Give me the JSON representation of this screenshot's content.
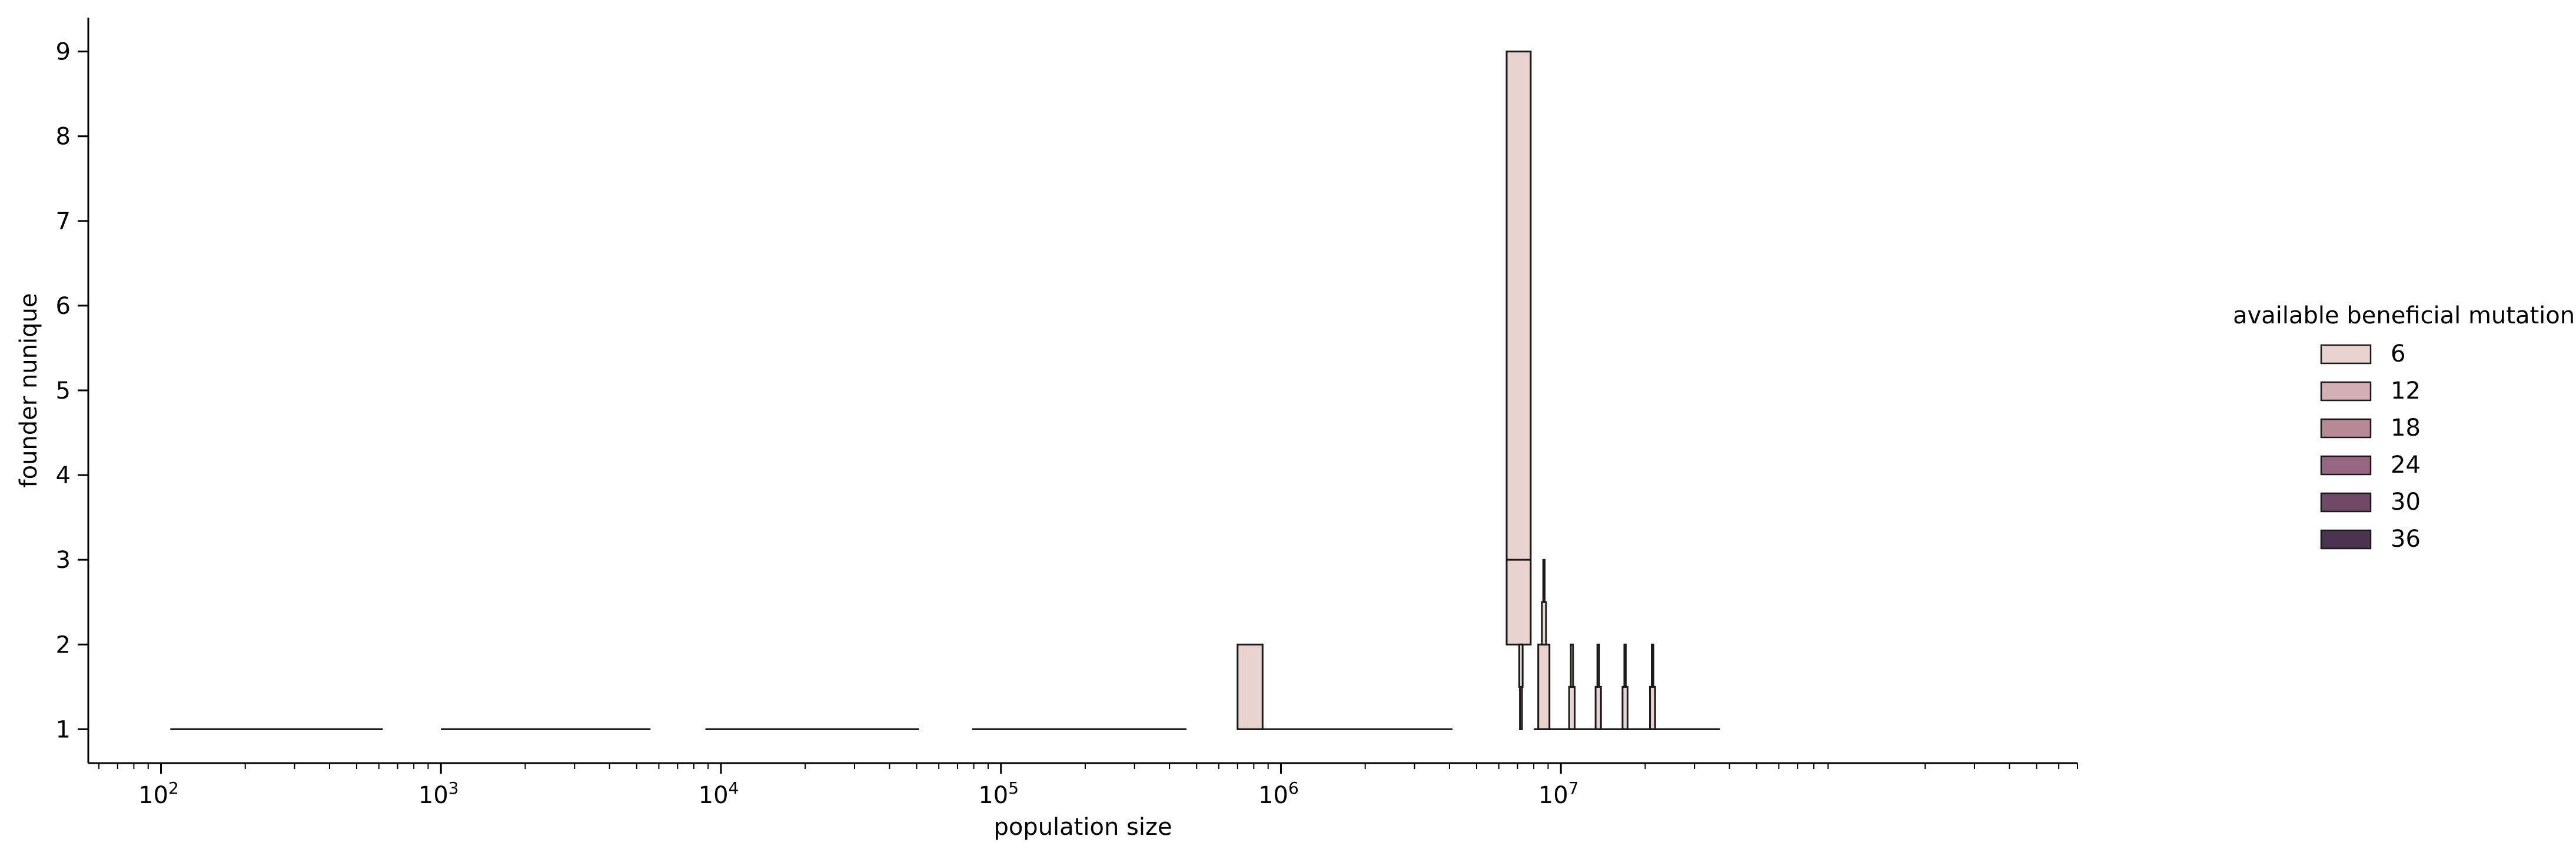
{
  "chart_data": {
    "type": "boxen",
    "xlabel": "population size",
    "ylabel": "founder nunique",
    "xscale": "log",
    "xlim": [
      55,
      700000000
    ],
    "ylim": [
      0.6,
      9.4
    ],
    "x_ticks": [
      {
        "value": 100,
        "label": "10",
        "exp": "2"
      },
      {
        "value": 1000,
        "label": "10",
        "exp": "3"
      },
      {
        "value": 10000,
        "label": "10",
        "exp": "4"
      },
      {
        "value": 100000,
        "label": "10",
        "exp": "5"
      },
      {
        "value": 1000000,
        "label": "10",
        "exp": "6"
      },
      {
        "value": 10000000,
        "label": "10",
        "exp": "7"
      }
    ],
    "y_ticks": [
      1,
      2,
      3,
      4,
      5,
      6,
      7,
      8,
      9
    ],
    "legend": {
      "title": "available beneficial mutations",
      "placement": "right",
      "entries": [
        {
          "label": "6",
          "color": "#e8d3ce"
        },
        {
          "label": "12",
          "color": "#d3aeb4"
        },
        {
          "label": "18",
          "color": "#b78895"
        },
        {
          "label": "24",
          "color": "#966781"
        },
        {
          "label": "30",
          "color": "#6f4a67"
        },
        {
          "label": "36",
          "color": "#4a3450"
        }
      ]
    },
    "groups": [
      {
        "x_range": [
          108,
          620
        ],
        "boxes": [
          {
            "lo": 1,
            "hi": 1,
            "x_range": [
              108,
              620
            ]
          }
        ],
        "median": 1
      },
      {
        "x_range": [
          1000,
          5600
        ],
        "boxes": [
          {
            "lo": 1,
            "hi": 1,
            "x_range": [
              1000,
              5600
            ]
          }
        ],
        "median": 1
      },
      {
        "x_range": [
          8800,
          51000
        ],
        "boxes": [
          {
            "lo": 1,
            "hi": 1,
            "x_range": [
              8800,
              51000
            ]
          }
        ],
        "median": 1
      },
      {
        "x_range": [
          79000,
          460000
        ],
        "boxes": [
          {
            "lo": 1,
            "hi": 1,
            "x_range": [
              79000,
              460000
            ]
          }
        ],
        "median": 1
      },
      {
        "x_range": [
          700000,
          4100000
        ],
        "boxes": [
          {
            "lo": 1,
            "hi": 2,
            "x_range": [
              700000,
              860000
            ]
          }
        ],
        "median": 1
      },
      {
        "x_range": [
          6400000,
          7800000
        ],
        "boxes": [
          {
            "lo": 2,
            "hi": 9,
            "x_range": [
              6400000,
              7800000
            ]
          }
        ],
        "median": 3
      },
      {
        "x_range": [
          7100000,
          7300000
        ],
        "boxes": [
          {
            "lo": 1,
            "hi": 1.5,
            "x_range": [
              7140000,
              7260000
            ]
          },
          {
            "lo": 1.5,
            "hi": 2,
            "x_range": [
              7100000,
              7300000
            ]
          }
        ],
        "median": 1
      },
      {
        "x_range": [
          8300000,
          9100000
        ],
        "boxes": [
          {
            "lo": 1,
            "hi": 2,
            "x_range": [
              8300000,
              9100000
            ]
          },
          {
            "lo": 2,
            "hi": 2.5,
            "x_range": [
              8550000,
              8850000
            ]
          },
          {
            "lo": 2.5,
            "hi": 3,
            "x_range": [
              8650000,
              8750000
            ]
          }
        ],
        "median": 1
      },
      {
        "x_range": [
          10700000,
          11200000
        ],
        "boxes": [
          {
            "lo": 1,
            "hi": 1.5,
            "x_range": [
              10700000,
              11200000
            ]
          },
          {
            "lo": 1.5,
            "hi": 2,
            "x_range": [
              10850000,
              11050000
            ]
          }
        ],
        "median": 1
      },
      {
        "x_range": [
          13300000,
          13900000
        ],
        "boxes": [
          {
            "lo": 1,
            "hi": 1.5,
            "x_range": [
              13300000,
              13900000
            ]
          },
          {
            "lo": 1.5,
            "hi": 2,
            "x_range": [
              13500000,
              13700000
            ]
          }
        ],
        "median": 1
      },
      {
        "x_range": [
          16600000,
          17300000
        ],
        "boxes": [
          {
            "lo": 1,
            "hi": 1.5,
            "x_range": [
              16600000,
              17300000
            ]
          },
          {
            "lo": 1.5,
            "hi": 2,
            "x_range": [
              16850000,
              17050000
            ]
          }
        ],
        "median": 1
      },
      {
        "x_range": [
          20800000,
          21700000
        ],
        "boxes": [
          {
            "lo": 1,
            "hi": 1.5,
            "x_range": [
              20800000,
              21700000
            ]
          },
          {
            "lo": 1.5,
            "hi": 2,
            "x_range": [
              21100000,
              21400000
            ]
          }
        ],
        "median": 1
      },
      {
        "x_range": [
          8000000,
          37000000
        ],
        "boxes": [
          {
            "lo": 1,
            "hi": 1,
            "x_range": [
              8000000,
              37000000
            ]
          }
        ],
        "median": 1
      }
    ]
  }
}
